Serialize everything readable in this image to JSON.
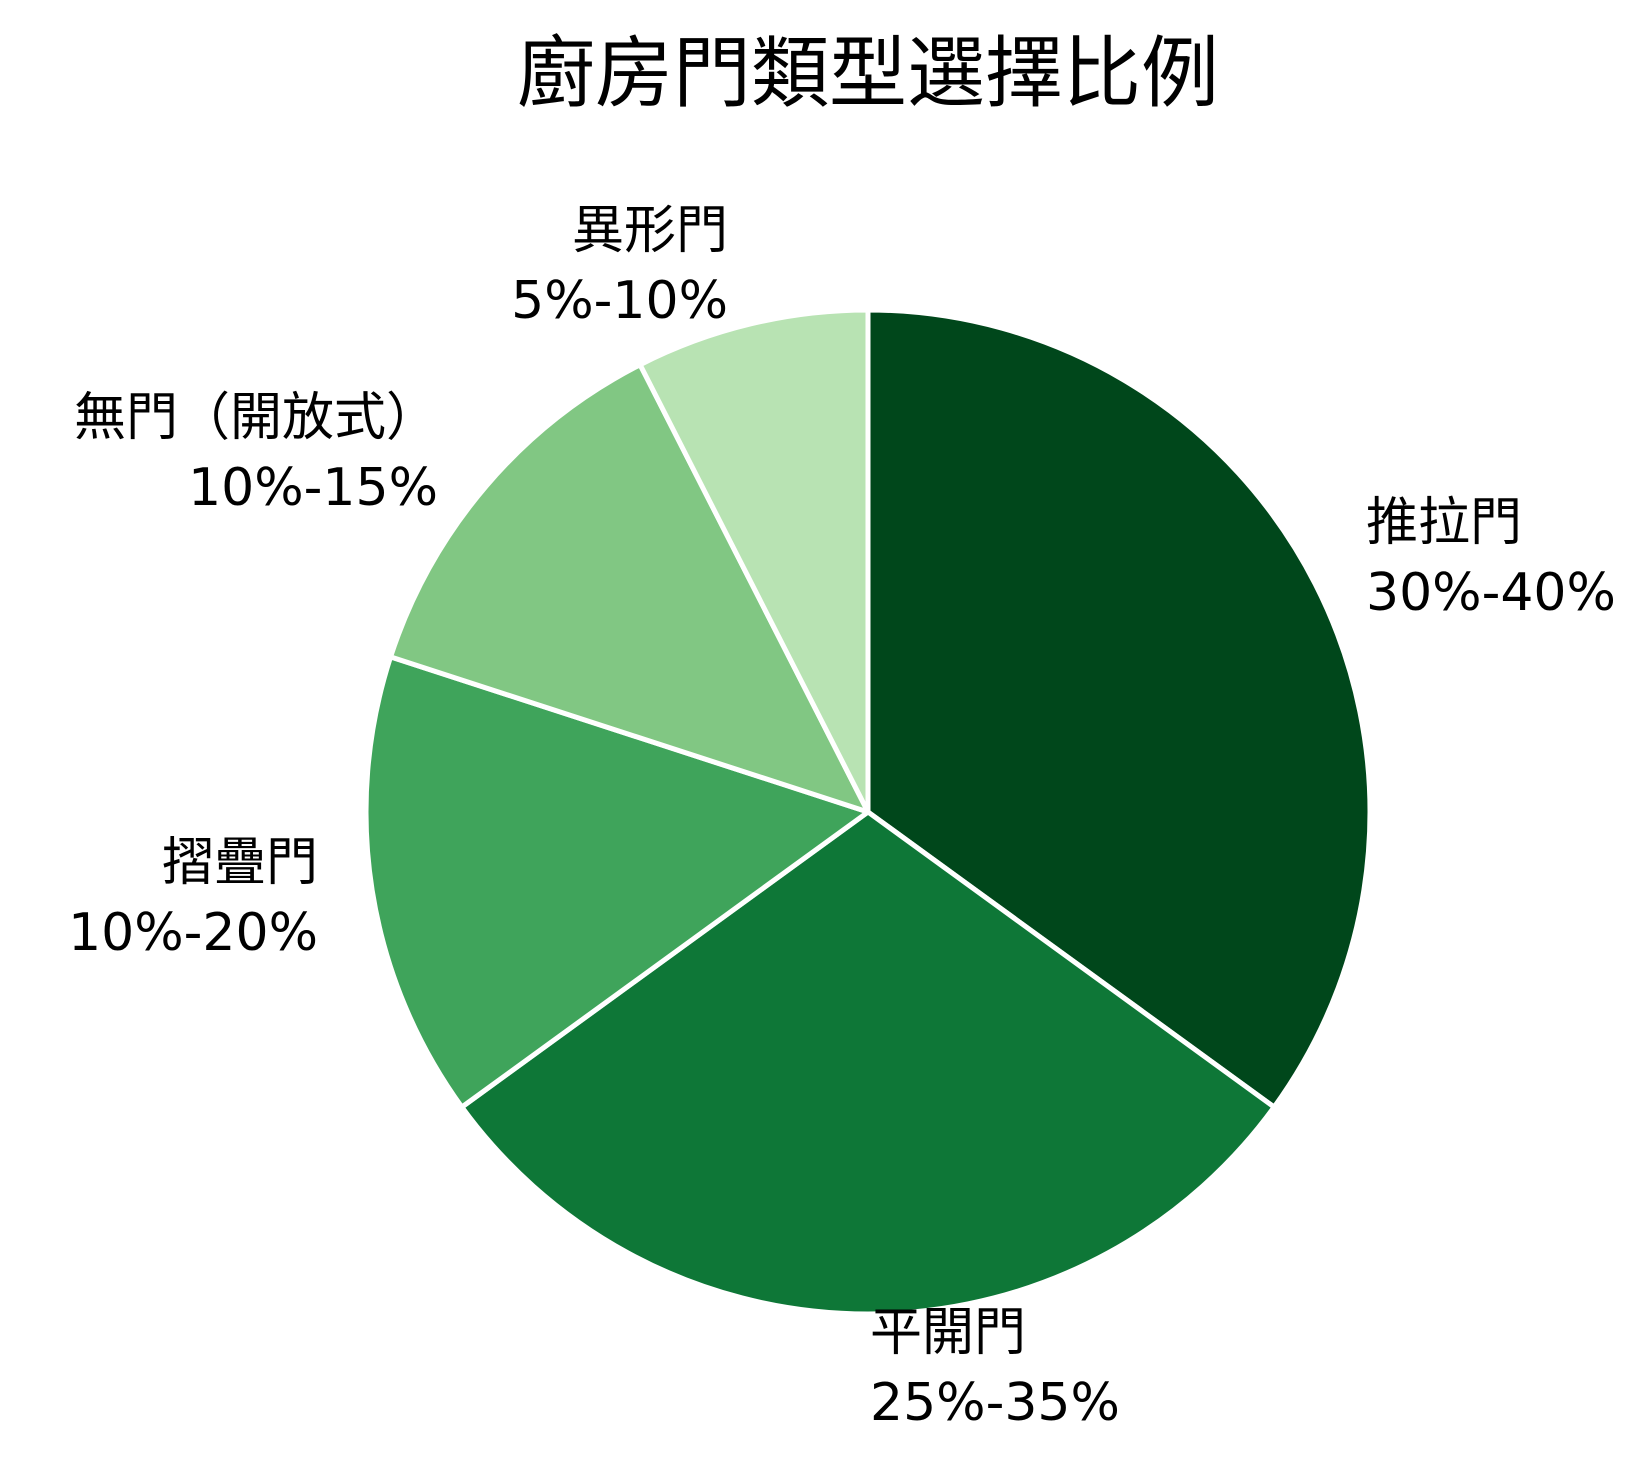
{
  "chart_data": {
    "type": "pie",
    "title": "廚房門類型選擇比例",
    "slices": [
      {
        "name": "推拉門",
        "range": "30%-40%",
        "value": 35,
        "color": "#00471b"
      },
      {
        "name": "平開門",
        "range": "25%-35%",
        "value": 30,
        "color": "#0e7737"
      },
      {
        "name": "摺疊門",
        "range": "10%-20%",
        "value": 15,
        "color": "#3fa45b"
      },
      {
        "name": "無門（開放式）",
        "range": "10%-15%",
        "value": 12.5,
        "color": "#81c783"
      },
      {
        "name": "異形門",
        "range": "5%-10%",
        "value": 7.5,
        "color": "#b8e3b3"
      }
    ],
    "start_angle": "12 o'clock",
    "direction": "clockwise",
    "legend": "none",
    "slice_border_color": "#ffffff"
  }
}
